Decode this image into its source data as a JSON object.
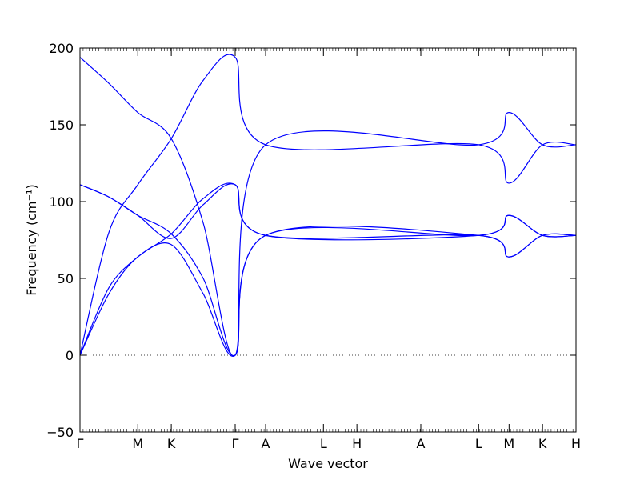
{
  "chart_data": {
    "type": "line",
    "title": "",
    "xlabel": "Wave vector",
    "ylabel": "Frequency (cm⁻¹)",
    "ylim": [
      -50,
      200
    ],
    "yticks": [
      -50,
      0,
      50,
      100,
      150,
      200
    ],
    "ytick_labels": [
      "−50",
      "0",
      "50",
      "100",
      "150",
      "200"
    ],
    "grid": false,
    "legend": "none",
    "zero_line": {
      "y": 0,
      "style": "dotted"
    },
    "line_color": "#0000ff",
    "xlim": [
      0,
      16.3
    ],
    "high_symmetry_points": [
      {
        "label": "Γ",
        "x": 0
      },
      {
        "label": "M",
        "x": 1.9
      },
      {
        "label": "K",
        "x": 3.0
      },
      {
        "label": "Γ",
        "x": 5.1
      },
      {
        "label": "A",
        "x": 6.1
      },
      {
        "label": "L",
        "x": 8.0
      },
      {
        "label": "H",
        "x": 9.1
      },
      {
        "label": "A",
        "x": 11.2
      },
      {
        "label": "L",
        "x": 13.1
      },
      {
        "label": "M",
        "x": 14.1
      },
      {
        "label": "K",
        "x": 15.2
      },
      {
        "label": "H",
        "x": 16.3
      }
    ],
    "series": [
      {
        "x": [
          0,
          0.95,
          1.9,
          3.0,
          4.05,
          5.1,
          6.1,
          13.1,
          14.1,
          15.2,
          16.3
        ],
        "y": [
          194,
          177,
          158,
          141,
          86,
          0,
          137,
          137,
          158,
          137,
          137
        ]
      },
      {
        "x": [
          0,
          0.95,
          1.9,
          3.0,
          4.05,
          5.1,
          6.1,
          13.1,
          14.1,
          15.2,
          16.3
        ],
        "y": [
          0,
          80,
          111,
          141,
          179,
          194,
          137,
          137,
          112,
          137,
          137
        ]
      },
      {
        "x": [
          0,
          0.95,
          1.9,
          3.0,
          4.05,
          5.1,
          6.1,
          13.1,
          14.1,
          15.2,
          16.3
        ],
        "y": [
          111,
          103,
          91,
          79,
          50,
          0,
          78,
          78,
          91,
          78,
          78
        ]
      },
      {
        "x": [
          0,
          0.95,
          1.9,
          3.0,
          4.05,
          5.1,
          6.1,
          13.1,
          14.1,
          15.2,
          16.3
        ],
        "y": [
          0,
          44,
          64,
          79,
          102,
          111,
          78,
          78,
          64,
          78,
          78
        ]
      },
      {
        "x": [
          0,
          0.95,
          1.9,
          3.0,
          4.05,
          5.1,
          6.1,
          13.1,
          14.1,
          15.2,
          16.3
        ],
        "y": [
          0,
          40,
          64,
          72,
          40,
          0,
          78,
          78,
          64,
          78,
          78
        ]
      },
      {
        "x": [
          0,
          0.95,
          1.9,
          3.0,
          4.05,
          5.1,
          6.1,
          13.1,
          14.1,
          15.2,
          16.3
        ],
        "y": [
          111,
          103,
          91,
          76,
          98,
          111,
          78,
          78,
          91,
          78,
          78
        ]
      }
    ]
  }
}
